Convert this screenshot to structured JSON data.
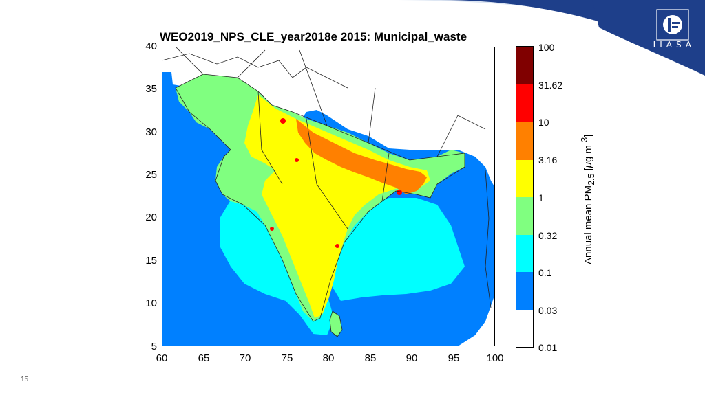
{
  "slide": {
    "number": "15",
    "logo_text": "IIASA",
    "brand_color": "#1e3f8a"
  },
  "map": {
    "title": "WEO2019_NPS_CLE_year2018e 2015: Municipal_waste",
    "x_ticks": [
      "60",
      "65",
      "70",
      "75",
      "80",
      "85",
      "90",
      "95",
      "100"
    ],
    "y_ticks": [
      "40",
      "35",
      "30",
      "25",
      "20",
      "15",
      "10",
      "5"
    ],
    "x_range": [
      60,
      100
    ],
    "y_range": [
      5,
      40
    ],
    "region": "South Asia"
  },
  "colorbar": {
    "label_prefix": "Annual mean PM",
    "label_sub": "2.5",
    "label_unit_open": " [",
    "label_mu": "μ",
    "label_unit_mid": "g m",
    "label_sup": "-3",
    "label_unit_close": "]",
    "tick_labels": [
      "100",
      "31.62",
      "10",
      "3.16",
      "1",
      "0.32",
      "0.1",
      "0.03",
      "0.01"
    ],
    "colors": [
      "#800000",
      "#ff0000",
      "#ff8000",
      "#ffff00",
      "#80ff80",
      "#00ffff",
      "#0080ff",
      "#ffffff"
    ]
  }
}
